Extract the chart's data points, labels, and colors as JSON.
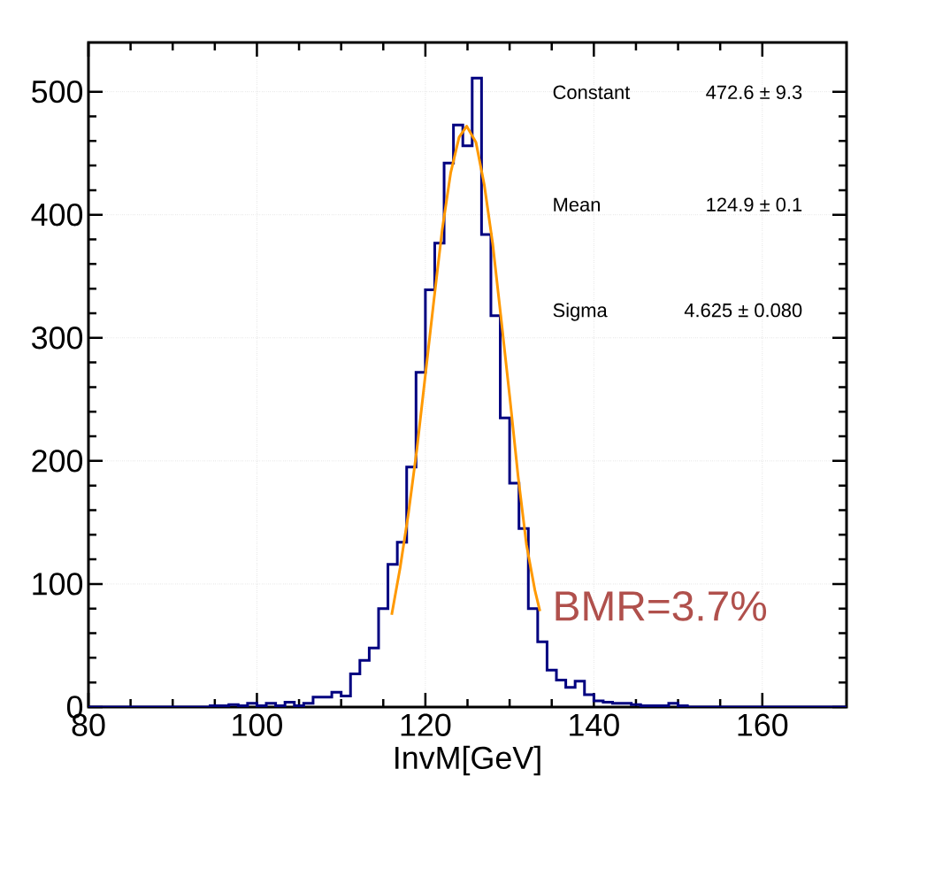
{
  "chart_data": {
    "type": "histogram",
    "xlabel": "InvM[GeV]",
    "xlim": [
      80,
      170
    ],
    "ylim": [
      0,
      540
    ],
    "xticks": [
      80,
      100,
      120,
      140,
      160
    ],
    "yticks": [
      0,
      100,
      200,
      300,
      400,
      500
    ],
    "grid": true,
    "marker": "none",
    "annotations": [
      "Constant",
      "472.6 ± 9.3",
      "Mean",
      "124.9 ± 0.1",
      "Sigma",
      "4.625 ± 0.080",
      "BMR=3.7%"
    ],
    "series": [
      {
        "color": "#000080",
        "bins": [
          80,
          81.111,
          82.222,
          83.333,
          84.444,
          85.556,
          86.667,
          87.778,
          88.889,
          90,
          91.111,
          92.222,
          93.333,
          94.444,
          95.556,
          96.667,
          97.778,
          98.889,
          100,
          101.111,
          102.222,
          103.333,
          104.444,
          105.556,
          106.667,
          107.778,
          108.889,
          110,
          111.111,
          112.222,
          113.333,
          114.444,
          115.556,
          116.667,
          117.778,
          118.889,
          120,
          121.111,
          122.222,
          123.333,
          124.444,
          125.556,
          126.667,
          127.778,
          128.889,
          130,
          131.111,
          132.222,
          133.333,
          134.444,
          135.556,
          136.667,
          137.778,
          138.889,
          140,
          141.111,
          142.222,
          143.333,
          144.444,
          145.556,
          146.667,
          147.778,
          148.889,
          150,
          151.111,
          152.222,
          153.333,
          154.444,
          155.556,
          156.667,
          157.778,
          158.889,
          160,
          161.111,
          162.222,
          163.333,
          164.444,
          165.556,
          166.667,
          167.778,
          168.889,
          170
        ],
        "values": [
          0,
          0,
          0,
          0,
          0,
          0,
          0,
          0,
          0,
          0,
          0,
          0,
          0,
          1,
          1,
          2,
          1,
          3,
          1,
          3,
          1,
          4,
          1,
          3,
          8,
          8,
          12,
          9,
          27,
          38,
          48,
          80,
          116,
          134,
          195,
          272,
          339,
          377,
          442,
          473,
          456,
          511,
          384,
          318,
          235,
          182,
          145,
          80,
          53,
          30,
          22,
          16,
          21,
          10,
          5,
          4,
          3,
          3,
          2,
          1,
          1,
          1,
          3,
          1,
          0,
          0,
          0,
          0,
          0,
          0,
          0,
          0,
          0,
          0,
          0,
          0,
          0,
          0,
          0,
          0,
          0
        ]
      },
      {
        "type": "line",
        "color": "#ff9900",
        "x": [
          116,
          117,
          118,
          119,
          120,
          121,
          122,
          123,
          124,
          124.9,
          126,
          127,
          128,
          129,
          130,
          131,
          132,
          133,
          133.6
        ],
        "values": [
          75,
          113,
          158,
          210,
          270,
          330,
          388,
          434,
          463,
          472,
          459,
          424,
          376,
          315,
          253,
          188,
          132,
          95,
          78
        ]
      }
    ]
  }
}
